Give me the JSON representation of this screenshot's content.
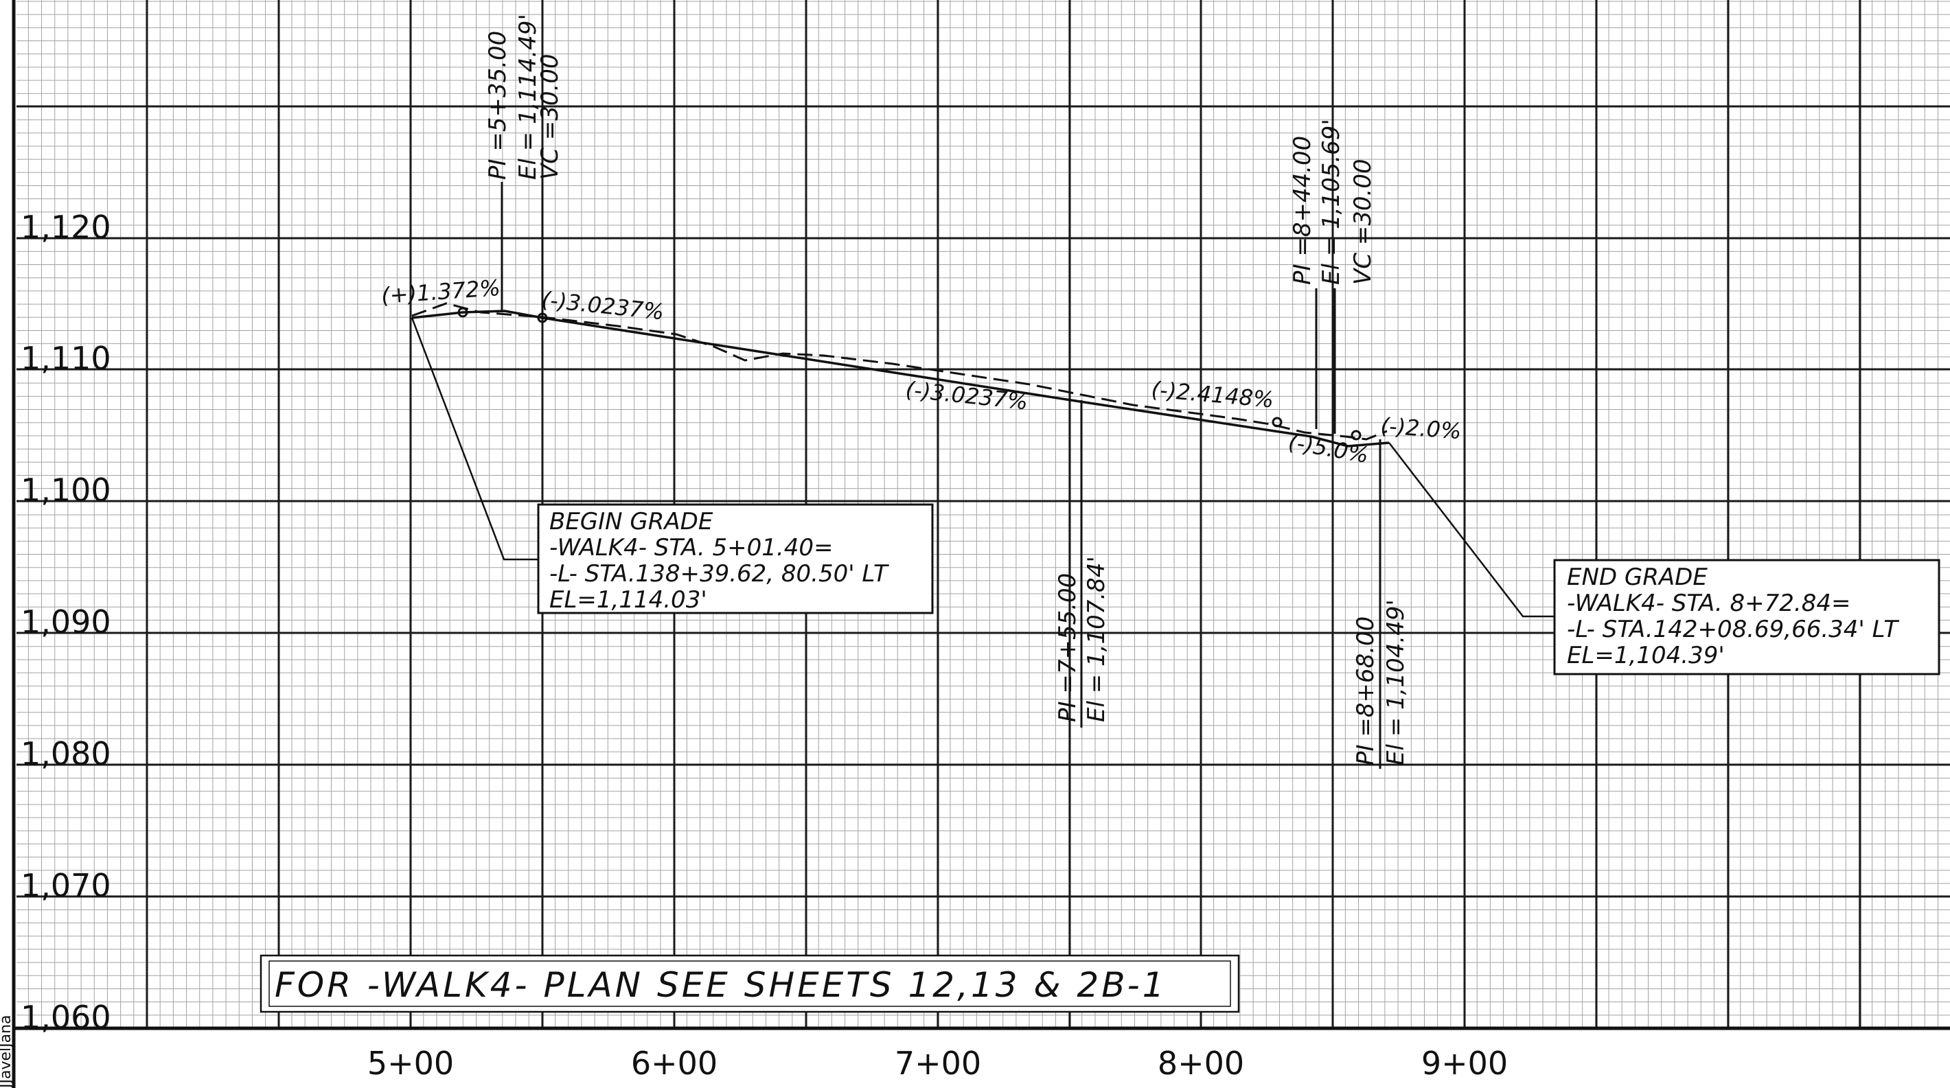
{
  "elevation_labels": [
    "1,120",
    "1,110",
    "1,100",
    "1,090",
    "1,080",
    "1,070",
    "1,060"
  ],
  "station_labels": [
    "5+00",
    "6+00",
    "7+00",
    "8+00",
    "9+00"
  ],
  "grade_labels": {
    "g1": "(+)1.372%",
    "g2": "(-)3.0237%",
    "g3": "(-)3.0237%",
    "g4": "(-)2.4148%",
    "g5": "(-)5.0%",
    "g6": "(-)2.0%"
  },
  "pvi1": {
    "pi": "PI =5+35.00",
    "el": "El = 1,114.49'",
    "vc": "VC =30.00"
  },
  "pvi2": {
    "pi": "PI =7+55.00",
    "el": "El = 1,107.84'"
  },
  "pvi3": {
    "pi": "PI =8+44.00",
    "el": "El = 1,105.69'",
    "vc": "VC =30.00"
  },
  "pvi4": {
    "pi": "PI =8+68.00",
    "el": "El = 1,104.49'"
  },
  "begin_grade": {
    "line1": "BEGIN GRADE",
    "line2": "-WALK4-  STA. 5+01.40=",
    "line3": "-L-  STA.138+39.62, 80.50' LT",
    "line4": "EL=1,114.03'"
  },
  "end_grade": {
    "line1": "END GRADE",
    "line2": "-WALK4-  STA. 8+72.84=",
    "line3": "-L-  STA.142+08.69,66.34' LT",
    "line4": "EL=1,104.39'"
  },
  "plan_note": "FOR  -WALK4-  PLAN  SEE  SHEETS  12,13  &  2B-1",
  "signature": "JJavelJana",
  "colors": {
    "line": "#111111",
    "minor_grid": "#9a9a9a",
    "major_grid": "#1a1a1a",
    "paper": "#ffffff"
  }
}
